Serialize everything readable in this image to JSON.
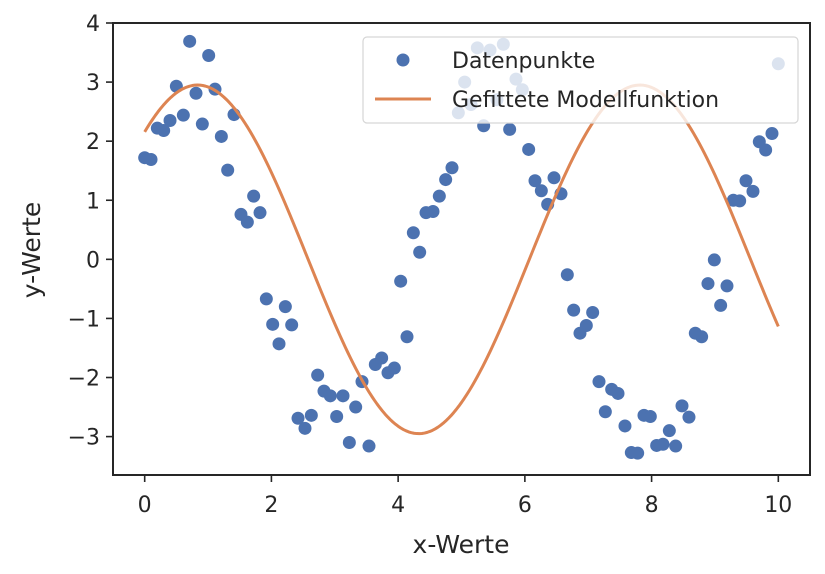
{
  "chart_data": {
    "type": "scatter",
    "title": "",
    "xlabel": "x-Werte",
    "ylabel": "y-Werte",
    "xlim": [
      -0.5,
      10.5
    ],
    "ylim": [
      -3.65,
      4.0
    ],
    "xticks": [
      0,
      2,
      4,
      6,
      8,
      10
    ],
    "xtick_labels": [
      "0",
      "2",
      "4",
      "6",
      "8",
      "10"
    ],
    "yticks": [
      -3,
      -2,
      -1,
      0,
      1,
      2,
      3,
      4
    ],
    "ytick_labels": [
      "−3",
      "−2",
      "−1",
      "0",
      "1",
      "2",
      "3",
      "4"
    ],
    "grid": false,
    "legend_position": "top-right",
    "colors": {
      "points": "#4c72b0",
      "line": "#dd8452",
      "axes": "#262626"
    },
    "series": [
      {
        "name": "Datenpunkte",
        "type": "scatter",
        "points": [
          [
            0.0,
            1.72
          ],
          [
            0.1,
            1.69
          ],
          [
            0.2,
            2.22
          ],
          [
            0.3,
            2.18
          ],
          [
            0.4,
            2.35
          ],
          [
            0.5,
            2.93
          ],
          [
            0.61,
            2.44
          ],
          [
            0.71,
            3.69
          ],
          [
            0.81,
            2.81
          ],
          [
            0.91,
            2.29
          ],
          [
            1.01,
            3.45
          ],
          [
            1.11,
            2.88
          ],
          [
            1.21,
            2.08
          ],
          [
            1.31,
            1.51
          ],
          [
            1.41,
            2.45
          ],
          [
            1.52,
            0.76
          ],
          [
            1.62,
            0.63
          ],
          [
            1.72,
            1.07
          ],
          [
            1.82,
            0.79
          ],
          [
            1.92,
            -0.67
          ],
          [
            2.02,
            -1.1
          ],
          [
            2.12,
            -1.43
          ],
          [
            2.22,
            -0.8
          ],
          [
            2.32,
            -1.11
          ],
          [
            2.42,
            -2.69
          ],
          [
            2.53,
            -2.86
          ],
          [
            2.63,
            -2.64
          ],
          [
            2.73,
            -1.96
          ],
          [
            2.83,
            -2.23
          ],
          [
            2.93,
            -2.31
          ],
          [
            3.03,
            -2.66
          ],
          [
            3.13,
            -2.31
          ],
          [
            3.23,
            -3.1
          ],
          [
            3.33,
            -2.5
          ],
          [
            3.43,
            -2.07
          ],
          [
            3.54,
            -3.16
          ],
          [
            3.64,
            -1.78
          ],
          [
            3.74,
            -1.67
          ],
          [
            3.84,
            -1.92
          ],
          [
            3.94,
            -1.84
          ],
          [
            4.04,
            -0.37
          ],
          [
            4.14,
            -1.31
          ],
          [
            4.24,
            0.45
          ],
          [
            4.34,
            0.12
          ],
          [
            4.44,
            0.79
          ],
          [
            4.55,
            0.81
          ],
          [
            4.65,
            1.07
          ],
          [
            4.75,
            1.35
          ],
          [
            4.85,
            1.55
          ],
          [
            4.95,
            2.48
          ],
          [
            5.05,
            3.0
          ],
          [
            5.15,
            2.62
          ],
          [
            5.25,
            3.58
          ],
          [
            5.35,
            2.26
          ],
          [
            5.45,
            3.54
          ],
          [
            5.56,
            2.7
          ],
          [
            5.66,
            3.64
          ],
          [
            5.76,
            2.2
          ],
          [
            5.86,
            3.05
          ],
          [
            5.96,
            2.87
          ],
          [
            6.06,
            1.86
          ],
          [
            6.16,
            1.33
          ],
          [
            6.26,
            1.16
          ],
          [
            6.36,
            0.93
          ],
          [
            6.46,
            1.38
          ],
          [
            6.57,
            1.11
          ],
          [
            6.67,
            -0.26
          ],
          [
            6.77,
            -0.86
          ],
          [
            6.87,
            -1.25
          ],
          [
            6.97,
            -1.12
          ],
          [
            7.07,
            -0.9
          ],
          [
            7.17,
            -2.07
          ],
          [
            7.27,
            -2.58
          ],
          [
            7.37,
            -2.2
          ],
          [
            7.47,
            -2.27
          ],
          [
            7.58,
            -2.82
          ],
          [
            7.68,
            -3.27
          ],
          [
            7.78,
            -3.28
          ],
          [
            7.88,
            -2.64
          ],
          [
            7.98,
            -2.66
          ],
          [
            8.08,
            -3.15
          ],
          [
            8.18,
            -3.13
          ],
          [
            8.28,
            -2.9
          ],
          [
            8.38,
            -3.16
          ],
          [
            8.48,
            -2.48
          ],
          [
            8.59,
            -2.67
          ],
          [
            8.69,
            -1.25
          ],
          [
            8.79,
            -1.31
          ],
          [
            8.89,
            -0.41
          ],
          [
            8.99,
            -0.01
          ],
          [
            9.09,
            -0.78
          ],
          [
            9.19,
            -0.45
          ],
          [
            9.29,
            1.0
          ],
          [
            9.39,
            0.99
          ],
          [
            9.49,
            1.33
          ],
          [
            9.6,
            1.15
          ],
          [
            9.7,
            1.99
          ],
          [
            9.8,
            1.85
          ],
          [
            9.9,
            2.13
          ],
          [
            10.0,
            3.31
          ]
        ]
      },
      {
        "name": "Gefittete Modellfunktion",
        "type": "line",
        "function": {
          "amplitude": 2.95,
          "frequency": 0.9,
          "phase": 0.82,
          "x_start": 0,
          "x_end": 10,
          "samples": 240
        }
      }
    ]
  }
}
